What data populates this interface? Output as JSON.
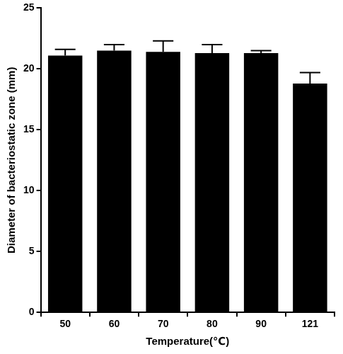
{
  "chart_data": {
    "type": "bar",
    "x_label": "Temperature(℃)",
    "y_label": "Diameter of bacteriostatic zone (mm)",
    "categories": [
      "50",
      "60",
      "70",
      "80",
      "90",
      "121"
    ],
    "values": [
      21.1,
      21.5,
      21.4,
      21.3,
      21.3,
      18.8
    ],
    "errors": [
      0.5,
      0.5,
      0.9,
      0.7,
      0.2,
      0.9
    ],
    "color": "#000000",
    "ylim": [
      0,
      25
    ],
    "yticks": [
      0,
      5,
      10,
      15,
      20,
      25
    ],
    "grid": false
  }
}
